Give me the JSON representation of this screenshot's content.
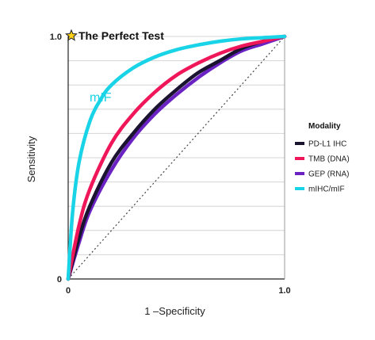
{
  "chart_data": {
    "type": "line",
    "xlabel": "1 –Specificity",
    "ylabel": "Sensitivity",
    "xlim": [
      0,
      1
    ],
    "ylim": [
      0,
      1
    ],
    "x_ticks": [
      "0",
      "1.0"
    ],
    "y_ticks": [
      "0",
      "1.0"
    ],
    "grid": "horizontal",
    "legend": {
      "title": "Modality",
      "position": "right"
    },
    "annotations": {
      "perfect_test": "The Perfect Test",
      "mif_label": "mIF"
    },
    "reference_line": {
      "type": "diagonal",
      "style": "dotted"
    },
    "series": [
      {
        "name": "PD-L1 IHC",
        "color": "#1a1430",
        "x": [
          0,
          0.05,
          0.1,
          0.2,
          0.3,
          0.4,
          0.5,
          0.6,
          0.7,
          0.8,
          0.9,
          1.0
        ],
        "y": [
          0,
          0.17,
          0.3,
          0.48,
          0.6,
          0.7,
          0.78,
          0.85,
          0.9,
          0.95,
          0.98,
          1.0
        ]
      },
      {
        "name": "TMB (DNA)",
        "color": "#f0165a",
        "x": [
          0,
          0.05,
          0.1,
          0.2,
          0.3,
          0.4,
          0.5,
          0.6,
          0.7,
          0.8,
          0.9,
          1.0
        ],
        "y": [
          0,
          0.22,
          0.37,
          0.56,
          0.68,
          0.77,
          0.84,
          0.89,
          0.93,
          0.96,
          0.98,
          1.0
        ]
      },
      {
        "name": "GEP (RNA)",
        "color": "#6b22c2",
        "x": [
          0,
          0.05,
          0.1,
          0.2,
          0.3,
          0.4,
          0.5,
          0.6,
          0.7,
          0.8,
          0.9,
          1.0
        ],
        "y": [
          0,
          0.15,
          0.28,
          0.45,
          0.58,
          0.68,
          0.76,
          0.83,
          0.89,
          0.94,
          0.97,
          1.0
        ]
      },
      {
        "name": "mIHC/mIF",
        "color": "#19d3e6",
        "x": [
          0,
          0.02,
          0.05,
          0.1,
          0.15,
          0.2,
          0.3,
          0.4,
          0.5,
          0.6,
          0.7,
          0.8,
          0.9,
          1.0
        ],
        "y": [
          0,
          0.27,
          0.48,
          0.65,
          0.74,
          0.8,
          0.87,
          0.915,
          0.945,
          0.965,
          0.98,
          0.99,
          0.995,
          1.0
        ]
      }
    ]
  }
}
